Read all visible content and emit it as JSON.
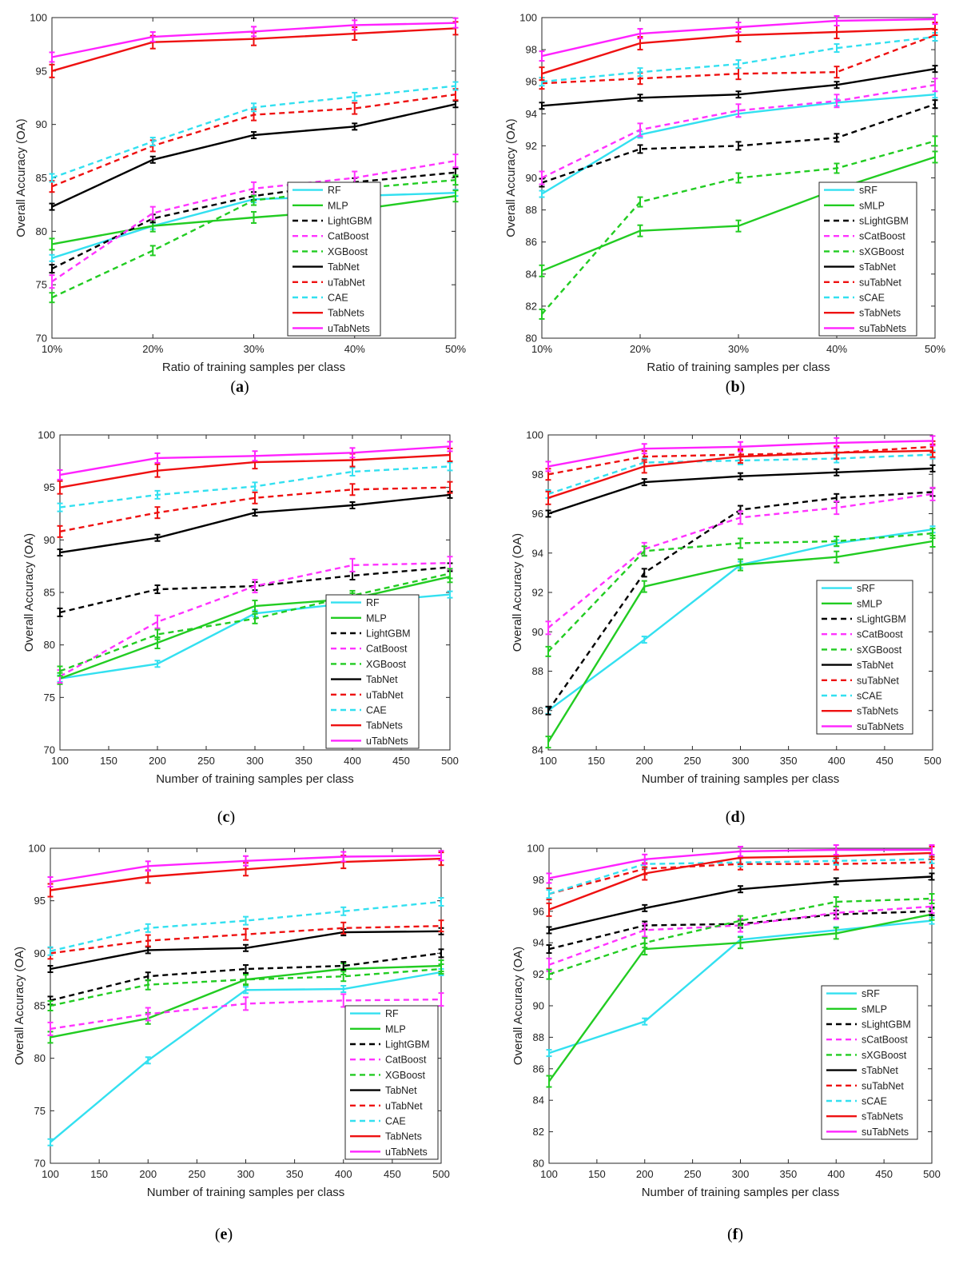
{
  "legend_colors": {
    "RF": "#33e0f0",
    "MLP": "#22cc22",
    "LightGBM": "#000000",
    "CatBoost": "#ff33ff",
    "XGBoost": "#22cc22",
    "TabNet": "#000000",
    "uTabNet": "#ee1111",
    "CAE": "#33e0f0",
    "TabNets": "#ee1111",
    "uTabNets": "#ff22ff"
  },
  "chart_data": [
    {
      "id": "a",
      "caption_letter": "a",
      "type": "line",
      "x": [
        "10%",
        "20%",
        "30%",
        "40%",
        "50%"
      ],
      "xlabel": "Ratio of training samples per class",
      "ylabel": "Overall Accuracy (OA)",
      "ylim": [
        70,
        100
      ],
      "yticks": [
        70,
        75,
        80,
        85,
        90,
        95,
        100
      ],
      "grid": false,
      "legend": "lower-right",
      "series": [
        {
          "name": "RF",
          "style": "solid",
          "color": "#33e0f0",
          "values": [
            77.5,
            80.5,
            83.0,
            83.3,
            83.6
          ]
        },
        {
          "name": "MLP",
          "style": "solid",
          "color": "#22cc22",
          "values": [
            78.8,
            80.5,
            81.3,
            82.0,
            83.3
          ]
        },
        {
          "name": "LightGBM",
          "style": "dashed",
          "color": "#000000",
          "values": [
            76.5,
            81.2,
            83.3,
            84.6,
            85.5
          ]
        },
        {
          "name": "CatBoost",
          "style": "dashed",
          "color": "#ff33ff",
          "values": [
            75.3,
            81.7,
            84.0,
            85.0,
            86.6
          ]
        },
        {
          "name": "XGBoost",
          "style": "dashed",
          "color": "#22cc22",
          "values": [
            73.8,
            78.2,
            82.9,
            84.0,
            84.8
          ]
        },
        {
          "name": "TabNet",
          "style": "solid",
          "color": "#000000",
          "values": [
            82.3,
            86.7,
            89.0,
            89.8,
            91.9
          ]
        },
        {
          "name": "uTabNet",
          "style": "dashed",
          "color": "#ee1111",
          "values": [
            84.2,
            88.0,
            90.9,
            91.5,
            92.8
          ]
        },
        {
          "name": "CAE",
          "style": "dashed",
          "color": "#33e0f0",
          "values": [
            85.0,
            88.4,
            91.6,
            92.6,
            93.6
          ]
        },
        {
          "name": "TabNets",
          "style": "solid",
          "color": "#ee1111",
          "values": [
            95.0,
            97.7,
            98.0,
            98.5,
            99.0
          ]
        },
        {
          "name": "uTabNets",
          "style": "solid",
          "color": "#ff22ff",
          "values": [
            96.3,
            98.2,
            98.7,
            99.3,
            99.5
          ]
        }
      ]
    },
    {
      "id": "b",
      "caption_letter": "b",
      "type": "line",
      "x": [
        "10%",
        "20%",
        "30%",
        "40%",
        "50%"
      ],
      "xlabel": "Ratio of training samples per class",
      "ylabel": "Overall Accuracy (OA)",
      "ylim": [
        80,
        100
      ],
      "yticks": [
        80,
        82,
        84,
        86,
        88,
        90,
        92,
        94,
        96,
        98,
        100
      ],
      "grid": false,
      "legend": "lower-right",
      "series": [
        {
          "name": "sRF",
          "style": "solid",
          "color": "#33e0f0",
          "values": [
            89.0,
            92.7,
            94.0,
            94.7,
            95.2
          ]
        },
        {
          "name": "sMLP",
          "style": "solid",
          "color": "#22cc22",
          "values": [
            84.2,
            86.7,
            87.0,
            89.3,
            91.3
          ]
        },
        {
          "name": "sLightGBM",
          "style": "dashed",
          "color": "#000000",
          "values": [
            89.7,
            91.8,
            92.0,
            92.5,
            94.6
          ]
        },
        {
          "name": "sCatBoost",
          "style": "dashed",
          "color": "#ff33ff",
          "values": [
            90.0,
            93.0,
            94.2,
            94.8,
            95.8
          ]
        },
        {
          "name": "sXGBoost",
          "style": "dashed",
          "color": "#22cc22",
          "values": [
            81.5,
            88.5,
            90.0,
            90.6,
            92.3
          ]
        },
        {
          "name": "sTabNet",
          "style": "solid",
          "color": "#000000",
          "values": [
            94.5,
            95.0,
            95.2,
            95.8,
            96.8
          ]
        },
        {
          "name": "suTabNet",
          "style": "dashed",
          "color": "#ee1111",
          "values": [
            95.9,
            96.2,
            96.5,
            96.6,
            98.9
          ]
        },
        {
          "name": "sCAE",
          "style": "dashed",
          "color": "#33e0f0",
          "values": [
            96.0,
            96.6,
            97.1,
            98.1,
            98.8
          ]
        },
        {
          "name": "sTabNets",
          "style": "solid",
          "color": "#ee1111",
          "values": [
            96.5,
            98.4,
            98.9,
            99.1,
            99.3
          ]
        },
        {
          "name": "suTabNets",
          "style": "solid",
          "color": "#ff22ff",
          "values": [
            97.6,
            99.0,
            99.4,
            99.8,
            99.9
          ]
        }
      ]
    },
    {
      "id": "c",
      "caption_letter": "c",
      "type": "line",
      "x": [
        100,
        200,
        300,
        400,
        500
      ],
      "xticks": [
        100,
        150,
        200,
        250,
        300,
        350,
        400,
        450,
        500
      ],
      "xlim": [
        100,
        500
      ],
      "xlabel": "Number of training samples per class",
      "ylabel": "Overall Accuracy (OA)",
      "ylim": [
        70,
        100
      ],
      "yticks": [
        70,
        75,
        80,
        85,
        90,
        95,
        100
      ],
      "grid": false,
      "legend": "lower-right",
      "series": [
        {
          "name": "RF",
          "style": "solid",
          "color": "#33e0f0",
          "values": [
            76.8,
            78.2,
            83.0,
            84.0,
            84.8
          ]
        },
        {
          "name": "MLP",
          "style": "solid",
          "color": "#22cc22",
          "values": [
            76.8,
            80.2,
            83.7,
            84.4,
            86.5
          ]
        },
        {
          "name": "LightGBM",
          "style": "dashed",
          "color": "#000000",
          "values": [
            83.1,
            85.3,
            85.6,
            86.6,
            87.4
          ]
        },
        {
          "name": "CatBoost",
          "style": "dashed",
          "color": "#ff33ff",
          "values": [
            77.0,
            82.2,
            85.6,
            87.6,
            87.8
          ]
        },
        {
          "name": "XGBoost",
          "style": "dashed",
          "color": "#22cc22",
          "values": [
            77.5,
            81.0,
            82.5,
            84.7,
            86.8
          ]
        },
        {
          "name": "TabNet",
          "style": "solid",
          "color": "#000000",
          "values": [
            88.8,
            90.2,
            92.6,
            93.3,
            94.3
          ]
        },
        {
          "name": "uTabNet",
          "style": "dashed",
          "color": "#ee1111",
          "values": [
            90.8,
            92.6,
            94.0,
            94.8,
            95.0
          ]
        },
        {
          "name": "CAE",
          "style": "dashed",
          "color": "#33e0f0",
          "values": [
            93.1,
            94.3,
            95.1,
            96.5,
            97.0
          ]
        },
        {
          "name": "TabNets",
          "style": "solid",
          "color": "#ee1111",
          "values": [
            95.0,
            96.6,
            97.4,
            97.6,
            98.1
          ]
        },
        {
          "name": "uTabNets",
          "style": "solid",
          "color": "#ff22ff",
          "values": [
            96.2,
            97.8,
            98.0,
            98.3,
            98.9
          ]
        }
      ]
    },
    {
      "id": "d",
      "caption_letter": "d",
      "type": "line",
      "x": [
        100,
        200,
        300,
        400,
        500
      ],
      "xticks": [
        100,
        150,
        200,
        250,
        300,
        350,
        400,
        450,
        500
      ],
      "xlim": [
        100,
        500
      ],
      "xlabel": "Number of training samples per class",
      "ylabel": "Overall Accuracy (OA)",
      "ylim": [
        84,
        100
      ],
      "yticks": [
        84,
        86,
        88,
        90,
        92,
        94,
        96,
        98,
        100
      ],
      "grid": false,
      "legend": "lower-right",
      "series": [
        {
          "name": "sRF",
          "style": "solid",
          "color": "#33e0f0",
          "values": [
            86.0,
            89.6,
            93.4,
            94.5,
            95.2
          ]
        },
        {
          "name": "sMLP",
          "style": "solid",
          "color": "#22cc22",
          "values": [
            84.4,
            92.3,
            93.4,
            93.8,
            94.6
          ]
        },
        {
          "name": "sLightGBM",
          "style": "dashed",
          "color": "#000000",
          "values": [
            86.0,
            93.0,
            96.2,
            96.8,
            97.1
          ]
        },
        {
          "name": "sCatBoost",
          "style": "dashed",
          "color": "#ff33ff",
          "values": [
            90.2,
            94.2,
            95.8,
            96.3,
            97.0
          ]
        },
        {
          "name": "sXGBoost",
          "style": "dashed",
          "color": "#22cc22",
          "values": [
            89.0,
            94.1,
            94.5,
            94.6,
            95.0
          ]
        },
        {
          "name": "sTabNet",
          "style": "solid",
          "color": "#000000",
          "values": [
            96.0,
            97.6,
            97.9,
            98.1,
            98.3
          ]
        },
        {
          "name": "suTabNet",
          "style": "dashed",
          "color": "#ee1111",
          "values": [
            98.0,
            98.9,
            99.0,
            99.1,
            99.4
          ]
        },
        {
          "name": "sCAE",
          "style": "dashed",
          "color": "#33e0f0",
          "values": [
            97.0,
            98.6,
            98.7,
            98.8,
            99.0
          ]
        },
        {
          "name": "sTabNets",
          "style": "solid",
          "color": "#ee1111",
          "values": [
            96.8,
            98.4,
            98.9,
            99.1,
            99.2
          ]
        },
        {
          "name": "suTabNets",
          "style": "solid",
          "color": "#ff22ff",
          "values": [
            98.4,
            99.3,
            99.4,
            99.6,
            99.7
          ]
        }
      ]
    },
    {
      "id": "e",
      "caption_letter": "e",
      "type": "line",
      "x": [
        100,
        200,
        300,
        400,
        500
      ],
      "xticks": [
        100,
        150,
        200,
        250,
        300,
        350,
        400,
        450,
        500
      ],
      "xlim": [
        100,
        500
      ],
      "xlabel": "Number of training samples per class",
      "ylabel": "Overall Accuracy (OA)",
      "ylim": [
        70,
        100
      ],
      "yticks": [
        70,
        75,
        80,
        85,
        90,
        95,
        100
      ],
      "grid": false,
      "legend": "lower-right",
      "series": [
        {
          "name": "RF",
          "style": "solid",
          "color": "#33e0f0",
          "values": [
            72.0,
            79.8,
            86.5,
            86.6,
            88.2
          ]
        },
        {
          "name": "MLP",
          "style": "solid",
          "color": "#22cc22",
          "values": [
            82.0,
            83.8,
            87.5,
            88.5,
            88.8
          ]
        },
        {
          "name": "LightGBM",
          "style": "dashed",
          "color": "#000000",
          "values": [
            85.5,
            87.8,
            88.5,
            88.8,
            90.0
          ]
        },
        {
          "name": "CatBoost",
          "style": "dashed",
          "color": "#ff33ff",
          "values": [
            82.8,
            84.2,
            85.2,
            85.5,
            85.6
          ]
        },
        {
          "name": "XGBoost",
          "style": "dashed",
          "color": "#22cc22",
          "values": [
            85.0,
            87.0,
            87.5,
            87.8,
            88.5
          ]
        },
        {
          "name": "TabNet",
          "style": "solid",
          "color": "#000000",
          "values": [
            88.5,
            90.3,
            90.5,
            92.0,
            92.1
          ]
        },
        {
          "name": "uTabNet",
          "style": "dashed",
          "color": "#ee1111",
          "values": [
            90.0,
            91.2,
            91.8,
            92.4,
            92.6
          ]
        },
        {
          "name": "CAE",
          "style": "dashed",
          "color": "#33e0f0",
          "values": [
            90.2,
            92.4,
            93.1,
            94.0,
            94.9
          ]
        },
        {
          "name": "TabNets",
          "style": "solid",
          "color": "#ee1111",
          "values": [
            96.0,
            97.3,
            98.0,
            98.7,
            99.0
          ]
        },
        {
          "name": "uTabNets",
          "style": "solid",
          "color": "#ff22ff",
          "values": [
            96.8,
            98.3,
            98.8,
            99.2,
            99.3
          ]
        }
      ]
    },
    {
      "id": "f",
      "caption_letter": "f",
      "type": "line",
      "x": [
        100,
        200,
        300,
        400,
        500
      ],
      "xticks": [
        100,
        150,
        200,
        250,
        300,
        350,
        400,
        450,
        500
      ],
      "xlim": [
        100,
        500
      ],
      "xlabel": "Number of training samples per class",
      "ylabel": "Overall Accuracy (OA)",
      "ylim": [
        80,
        100
      ],
      "yticks": [
        80,
        82,
        84,
        86,
        88,
        90,
        92,
        94,
        96,
        98,
        100
      ],
      "grid": false,
      "legend": "lower-right",
      "series": [
        {
          "name": "sRF",
          "style": "solid",
          "color": "#33e0f0",
          "values": [
            87.0,
            89.0,
            94.2,
            94.8,
            95.4
          ]
        },
        {
          "name": "sMLP",
          "style": "solid",
          "color": "#22cc22",
          "values": [
            85.2,
            93.6,
            94.0,
            94.6,
            95.8
          ]
        },
        {
          "name": "sLightGBM",
          "style": "dashed",
          "color": "#000000",
          "values": [
            93.6,
            95.1,
            95.2,
            95.8,
            96.0
          ]
        },
        {
          "name": "sCatBoost",
          "style": "dashed",
          "color": "#ff33ff",
          "values": [
            92.6,
            94.8,
            95.1,
            95.9,
            96.3
          ]
        },
        {
          "name": "sXGBoost",
          "style": "dashed",
          "color": "#22cc22",
          "values": [
            92.0,
            94.0,
            95.4,
            96.6,
            96.8
          ]
        },
        {
          "name": "sTabNet",
          "style": "solid",
          "color": "#000000",
          "values": [
            94.8,
            96.2,
            97.4,
            97.9,
            98.2
          ]
        },
        {
          "name": "suTabNet",
          "style": "dashed",
          "color": "#ee1111",
          "values": [
            97.1,
            98.7,
            99.0,
            99.0,
            99.1
          ]
        },
        {
          "name": "sCAE",
          "style": "dashed",
          "color": "#33e0f0",
          "values": [
            97.1,
            99.0,
            99.1,
            99.2,
            99.3
          ]
        },
        {
          "name": "sTabNets",
          "style": "solid",
          "color": "#ee1111",
          "values": [
            96.1,
            98.4,
            99.4,
            99.5,
            99.7
          ]
        },
        {
          "name": "suTabNets",
          "style": "solid",
          "color": "#ff22ff",
          "values": [
            98.1,
            99.3,
            99.8,
            99.9,
            99.9
          ]
        }
      ]
    }
  ]
}
